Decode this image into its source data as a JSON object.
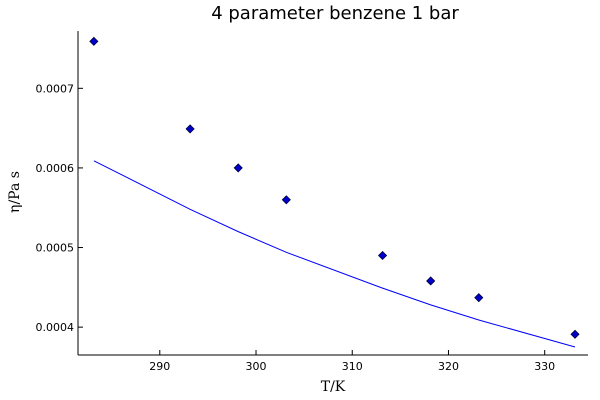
{
  "chart_data": {
    "type": "scatter",
    "title": "4 parameter benzene 1 bar",
    "xlabel": "T/K",
    "ylabel": "η/Pa s",
    "xlim": [
      281.5,
      334.5
    ],
    "ylim": [
      0.000365,
      0.000772
    ],
    "xticks": [
      290,
      300,
      310,
      320,
      330
    ],
    "yticks": [
      0.0004,
      0.0005,
      0.0006,
      0.0007
    ],
    "xtick_labels": [
      "290",
      "300",
      "310",
      "320",
      "330"
    ],
    "ytick_labels": [
      "0.0004",
      "0.0005",
      "0.0006",
      "0.0007"
    ],
    "grid": false,
    "legend": "none",
    "series": [
      {
        "kind": "markers",
        "marker": "diamond",
        "color": "#0000cc",
        "x": [
          283.15,
          293.15,
          298.15,
          303.15,
          313.15,
          318.15,
          323.15,
          333.15
        ],
        "y": [
          0.000759,
          0.000649,
          0.0006,
          0.00056,
          0.00049,
          0.000458,
          0.000437,
          0.000391
        ]
      },
      {
        "kind": "line",
        "color": "#0000ff",
        "x": [
          283.15,
          293.15,
          298.15,
          303.15,
          313.15,
          318.15,
          323.15,
          333.15
        ],
        "y": [
          0.000609,
          0.000548,
          0.00052,
          0.000494,
          0.000449,
          0.000428,
          0.000409,
          0.000375
        ]
      }
    ]
  }
}
